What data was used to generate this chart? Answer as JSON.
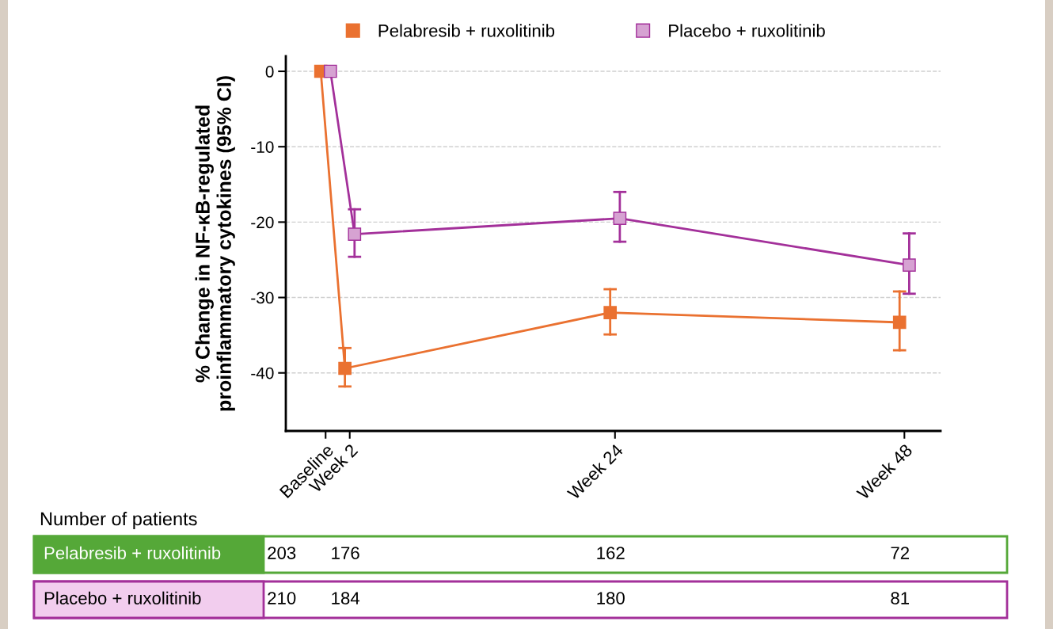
{
  "chart_data": {
    "type": "line",
    "ylabel": "% Change in NF-κB-regulated\nproinflammatory cytokines (95% CI)",
    "categories": [
      "Baseline",
      null,
      "Week 2",
      null,
      null,
      null,
      null,
      null,
      null,
      null,
      null,
      null,
      null,
      null,
      null,
      null,
      null,
      null,
      null,
      null,
      null,
      null,
      null,
      null,
      "Week 24",
      null,
      null,
      null,
      null,
      null,
      null,
      null,
      null,
      null,
      null,
      null,
      null,
      null,
      null,
      null,
      null,
      null,
      null,
      null,
      null,
      null,
      null,
      null,
      "Week 48"
    ],
    "ylim": [
      -47.7,
      2.0
    ],
    "yticks": [
      0,
      -10,
      -20,
      -30,
      -40
    ],
    "grid": "y",
    "legend": "top",
    "marker": "square",
    "line_style": "solid",
    "series": [
      {
        "name": "Pelabresib + ruxolitinib",
        "color": "#ea7130",
        "values": [
          0,
          null,
          -39.4,
          null,
          null,
          null,
          null,
          null,
          null,
          null,
          null,
          null,
          null,
          null,
          null,
          null,
          null,
          null,
          null,
          null,
          null,
          null,
          null,
          null,
          -32.0,
          null,
          null,
          null,
          null,
          null,
          null,
          null,
          null,
          null,
          null,
          null,
          null,
          null,
          null,
          null,
          null,
          null,
          null,
          null,
          null,
          null,
          null,
          null,
          -33.3
        ],
        "errors": [
          null,
          null,
          [
            -41.8,
            -36.7
          ],
          null,
          null,
          null,
          null,
          null,
          null,
          null,
          null,
          null,
          null,
          null,
          null,
          null,
          null,
          null,
          null,
          null,
          null,
          null,
          null,
          null,
          [
            -34.9,
            -28.9
          ],
          null,
          null,
          null,
          null,
          null,
          null,
          null,
          null,
          null,
          null,
          null,
          null,
          null,
          null,
          null,
          null,
          null,
          null,
          null,
          null,
          null,
          null,
          null,
          [
            -37.0,
            -29.2
          ]
        ]
      },
      {
        "name": "Placebo + ruxolitinib",
        "color": "#a3309a",
        "values": [
          0,
          null,
          -21.6,
          null,
          null,
          null,
          null,
          null,
          null,
          null,
          null,
          null,
          null,
          null,
          null,
          null,
          null,
          null,
          null,
          null,
          null,
          null,
          null,
          null,
          -19.5,
          null,
          null,
          null,
          null,
          null,
          null,
          null,
          null,
          null,
          null,
          null,
          null,
          null,
          null,
          null,
          null,
          null,
          null,
          null,
          null,
          null,
          null,
          null,
          -25.7
        ],
        "errors": [
          null,
          null,
          [
            -24.6,
            -18.3
          ],
          null,
          null,
          null,
          null,
          null,
          null,
          null,
          null,
          null,
          null,
          null,
          null,
          null,
          null,
          null,
          null,
          null,
          null,
          null,
          null,
          null,
          [
            -22.6,
            -16.0
          ],
          null,
          null,
          null,
          null,
          null,
          null,
          null,
          null,
          null,
          null,
          null,
          null,
          null,
          null,
          null,
          null,
          null,
          null,
          null,
          null,
          null,
          null,
          null,
          [
            -29.5,
            -21.5
          ]
        ]
      }
    ],
    "annotations": [
      "Number of patients",
      "Pelabresib + ruxolitinib",
      "203",
      "176",
      "162",
      "72",
      "Placebo + ruxolitinib",
      "210",
      "184",
      "180",
      "81"
    ]
  }
}
